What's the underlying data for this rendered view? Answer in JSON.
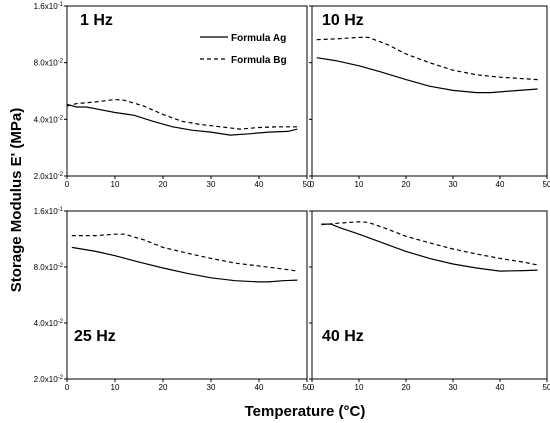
{
  "chart_data": {
    "type": "line",
    "ylabel": "Storage Modulus E' (MPa)",
    "xlabel": "Temperature (°C)",
    "yscale": "log",
    "ylim": [
      0.02,
      0.16
    ],
    "xlim": [
      0,
      50
    ],
    "yticks": [
      {
        "value": 0.02,
        "label": "2.0x10-2"
      },
      {
        "value": 0.04,
        "label": "4.0x10-2"
      },
      {
        "value": 0.08,
        "label": "8.0x10-2"
      },
      {
        "value": 0.16,
        "label": "1.6x10-1"
      }
    ],
    "xticks": [
      0,
      10,
      20,
      30,
      40,
      50
    ],
    "legend": [
      {
        "name": "Formula Ag",
        "style": "solid"
      },
      {
        "name": "Formula Bg",
        "style": "dashed"
      }
    ],
    "legend_position": "top-right of first panel",
    "panels": [
      {
        "title": "1 Hz",
        "series": [
          {
            "name": "Formula Ag",
            "style": "solid",
            "x": [
              0,
              2,
              4,
              6,
              10,
              14,
              18,
              22,
              26,
              30,
              34,
              38,
              42,
              46,
              48
            ],
            "y": [
              0.048,
              0.0465,
              0.0465,
              0.0455,
              0.0435,
              0.042,
              0.039,
              0.0365,
              0.035,
              0.0342,
              0.033,
              0.0335,
              0.0342,
              0.0345,
              0.0355
            ]
          },
          {
            "name": "Formula Bg",
            "style": "dashed",
            "x": [
              0,
              2,
              6,
              10,
              12,
              16,
              20,
              24,
              28,
              32,
              36,
              40,
              44,
              48
            ],
            "y": [
              0.047,
              0.0485,
              0.0495,
              0.051,
              0.0505,
              0.047,
              0.0425,
              0.039,
              0.0375,
              0.0365,
              0.0355,
              0.0362,
              0.0365,
              0.0365
            ]
          }
        ]
      },
      {
        "title": "10 Hz",
        "series": [
          {
            "name": "Formula Ag",
            "style": "solid",
            "x": [
              1,
              5,
              10,
              15,
              20,
              25,
              30,
              35,
              38,
              42,
              48
            ],
            "y": [
              0.085,
              0.082,
              0.077,
              0.071,
              0.065,
              0.06,
              0.057,
              0.0555,
              0.0555,
              0.0565,
              0.058
            ]
          },
          {
            "name": "Formula Bg",
            "style": "dashed",
            "x": [
              1,
              5,
              10,
              12,
              16,
              20,
              25,
              30,
              35,
              40,
              48
            ],
            "y": [
              0.106,
              0.107,
              0.109,
              0.109,
              0.1,
              0.089,
              0.08,
              0.073,
              0.069,
              0.067,
              0.065
            ]
          }
        ]
      },
      {
        "title": "25 Hz",
        "series": [
          {
            "name": "Formula Ag",
            "style": "solid",
            "x": [
              1,
              6,
              10,
              15,
              20,
              25,
              30,
              35,
              40,
              42,
              45,
              48
            ],
            "y": [
              0.102,
              0.097,
              0.092,
              0.085,
              0.079,
              0.074,
              0.07,
              0.0675,
              0.0665,
              0.0665,
              0.0675,
              0.068
            ]
          },
          {
            "name": "Formula Bg",
            "style": "dashed",
            "x": [
              1,
              6,
              10,
              12,
              16,
              20,
              25,
              30,
              35,
              40,
              45,
              48
            ],
            "y": [
              0.118,
              0.118,
              0.12,
              0.12,
              0.112,
              0.102,
              0.095,
              0.089,
              0.084,
              0.081,
              0.078,
              0.076
            ]
          }
        ]
      },
      {
        "title": "40 Hz",
        "series": [
          {
            "name": "Formula Ag",
            "style": "solid",
            "x": [
              2,
              4,
              6,
              10,
              15,
              20,
              25,
              30,
              35,
              40,
              45,
              48
            ],
            "y": [
              0.136,
              0.136,
              0.13,
              0.12,
              0.108,
              0.097,
              0.089,
              0.083,
              0.079,
              0.076,
              0.0765,
              0.077
            ]
          },
          {
            "name": "Formula Bg",
            "style": "dashed",
            "x": [
              2,
              6,
              10,
              12,
              16,
              20,
              25,
              30,
              35,
              40,
              45,
              48
            ],
            "y": [
              0.135,
              0.138,
              0.14,
              0.139,
              0.128,
              0.117,
              0.108,
              0.1,
              0.094,
              0.089,
              0.085,
              0.082
            ]
          }
        ]
      }
    ]
  }
}
